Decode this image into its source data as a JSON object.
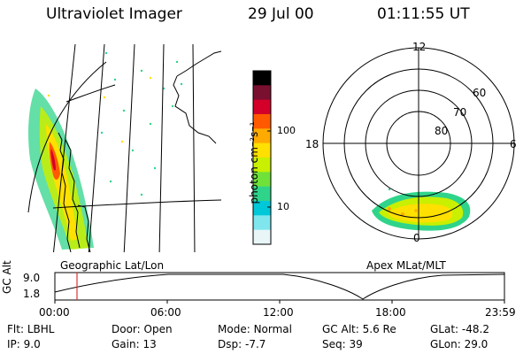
{
  "header": {
    "instrument": "Ultraviolet Imager",
    "date": "29 Jul 00",
    "time": "01:11:55 UT"
  },
  "panels": {
    "left_label": "Geographic Lat/Lon",
    "right_label": "Apex MLat/MLT"
  },
  "colorbar": {
    "unit_label": "photon cm⁻²s⁻¹",
    "ticks": [
      "100",
      "10"
    ],
    "colors": [
      "#000000",
      "#7a1030",
      "#d4002a",
      "#ff5a00",
      "#ffaa00",
      "#ffe000",
      "#c8f000",
      "#6fe23a",
      "#2fd48a",
      "#00c8d8",
      "#7fe6ee",
      "#e8f6f8"
    ]
  },
  "polar": {
    "mlt_labels": {
      "top": "12",
      "left": "18",
      "right": "6",
      "bottom": "0"
    },
    "lat_labels": [
      "60",
      "70",
      "80"
    ]
  },
  "timeline": {
    "ylabel": "GC Alt",
    "ytick_top": "9.0",
    "ytick_bottom": "1.8",
    "x_ticks": [
      "00:00",
      "06:00",
      "12:00",
      "18:00",
      "23:59"
    ],
    "marker_color": "#e03030"
  },
  "info": {
    "row1": [
      {
        "label": "Flt:",
        "value": "LBHL"
      },
      {
        "label": "Door:",
        "value": "Open"
      },
      {
        "label": "Mode:",
        "value": "Normal"
      },
      {
        "label": "GC Alt:",
        "value": "5.6 Re"
      },
      {
        "label": "GLat:",
        "value": "-48.2"
      }
    ],
    "row2": [
      {
        "label": "IP:",
        "value": "9.0"
      },
      {
        "label": "Gain:",
        "value": "13"
      },
      {
        "label": "Dsp:",
        "value": "-7.7"
      },
      {
        "label": "Seq:",
        "value": "39"
      },
      {
        "label": "GLon:",
        "value": "29.0"
      }
    ]
  }
}
